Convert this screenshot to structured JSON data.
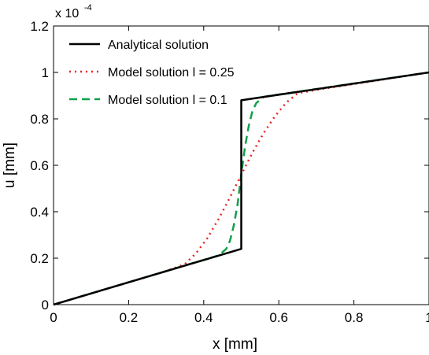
{
  "chart_data": {
    "type": "line",
    "xlabel": "x [mm]",
    "ylabel": "u [mm]",
    "xlim": [
      0,
      1
    ],
    "ylim": [
      0,
      1.2
    ],
    "y_multiplier_label": "x 10",
    "y_multiplier_exponent": "-4",
    "xticks": [
      "0",
      "0.2",
      "0.4",
      "0.6",
      "0.8",
      "1"
    ],
    "yticks": [
      "0",
      "0.2",
      "0.4",
      "0.6",
      "0.8",
      "1",
      "1.2"
    ],
    "grid": false,
    "legend_position": "top-left",
    "series": [
      {
        "name": "Analytical solution",
        "color": "#000000",
        "style": "solid",
        "x": [
          0,
          0.5,
          0.5,
          1.0
        ],
        "y": [
          0,
          0.24,
          0.88,
          1.0
        ]
      },
      {
        "name": "Model solution l = 0.25",
        "color": "#e8231f",
        "style": "dotted",
        "x": [
          0,
          0.3,
          0.35,
          0.38,
          0.41,
          0.44,
          0.47,
          0.5,
          0.53,
          0.56,
          0.59,
          0.62,
          0.65,
          0.7,
          1.0
        ],
        "y": [
          0,
          0.144,
          0.175,
          0.222,
          0.287,
          0.37,
          0.462,
          0.56,
          0.655,
          0.74,
          0.812,
          0.87,
          0.91,
          0.925,
          1.0
        ]
      },
      {
        "name": "Model solution l = 0.1",
        "color": "#11a04a",
        "style": "dashed",
        "x": [
          0,
          0.44,
          0.46,
          0.47,
          0.48,
          0.49,
          0.5,
          0.51,
          0.52,
          0.53,
          0.54,
          0.56,
          0.58,
          1.0
        ],
        "y": [
          0,
          0.212,
          0.24,
          0.275,
          0.34,
          0.43,
          0.56,
          0.68,
          0.77,
          0.835,
          0.868,
          0.895,
          0.9,
          1.0
        ]
      }
    ]
  },
  "legend": {
    "items": [
      {
        "label": "Analytical solution",
        "color": "#000000",
        "dash": ""
      },
      {
        "label": "Model solution l = 0.25",
        "color": "#e8231f",
        "dash": "2,5"
      },
      {
        "label": "Model solution l = 0.1",
        "color": "#11a04a",
        "dash": "10,6"
      }
    ]
  }
}
